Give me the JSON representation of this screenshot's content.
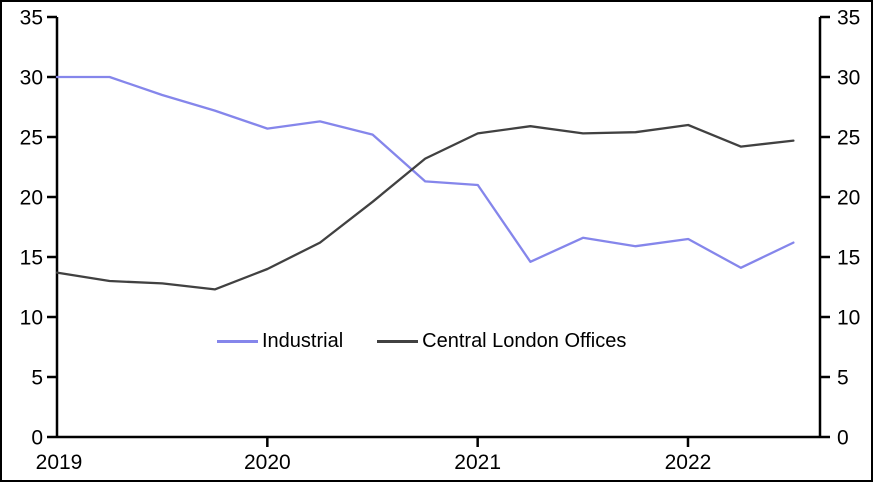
{
  "window": {
    "background": "#ffffff",
    "frame_color": "#000000"
  },
  "chart_data": {
    "type": "line",
    "title": "",
    "xlabel": "",
    "ylabel": "",
    "x": [
      "2019 Q1",
      "2019 Q2",
      "2019 Q3",
      "2019 Q4",
      "2020 Q1",
      "2020 Q2",
      "2020 Q3",
      "2020 Q4",
      "2021 Q1",
      "2021 Q2",
      "2021 Q3",
      "2021 Q4",
      "2022 Q1",
      "2022 Q2",
      "2022 Q3"
    ],
    "series": [
      {
        "name": "Industrial",
        "color": "#8586eb",
        "values": [
          30.0,
          30.0,
          28.5,
          27.2,
          25.7,
          26.3,
          25.2,
          21.3,
          21.0,
          14.6,
          16.6,
          15.9,
          16.5,
          14.1,
          16.2
        ]
      },
      {
        "name": "Central London Offices",
        "color": "#414141",
        "values": [
          13.7,
          13.0,
          12.8,
          12.3,
          14.0,
          16.2,
          19.6,
          23.2,
          25.3,
          25.9,
          25.3,
          25.4,
          26.0,
          24.2,
          24.7
        ]
      }
    ],
    "ylim": [
      0,
      35
    ],
    "y_ticks": [
      0,
      5,
      10,
      15,
      20,
      25,
      30,
      35
    ],
    "x_tick_labels": [
      "2019",
      "2020",
      "2021",
      "2022"
    ],
    "dual_y_axis": true,
    "grid": false,
    "legend_position": "inside-center",
    "axis_color": "#000000"
  }
}
